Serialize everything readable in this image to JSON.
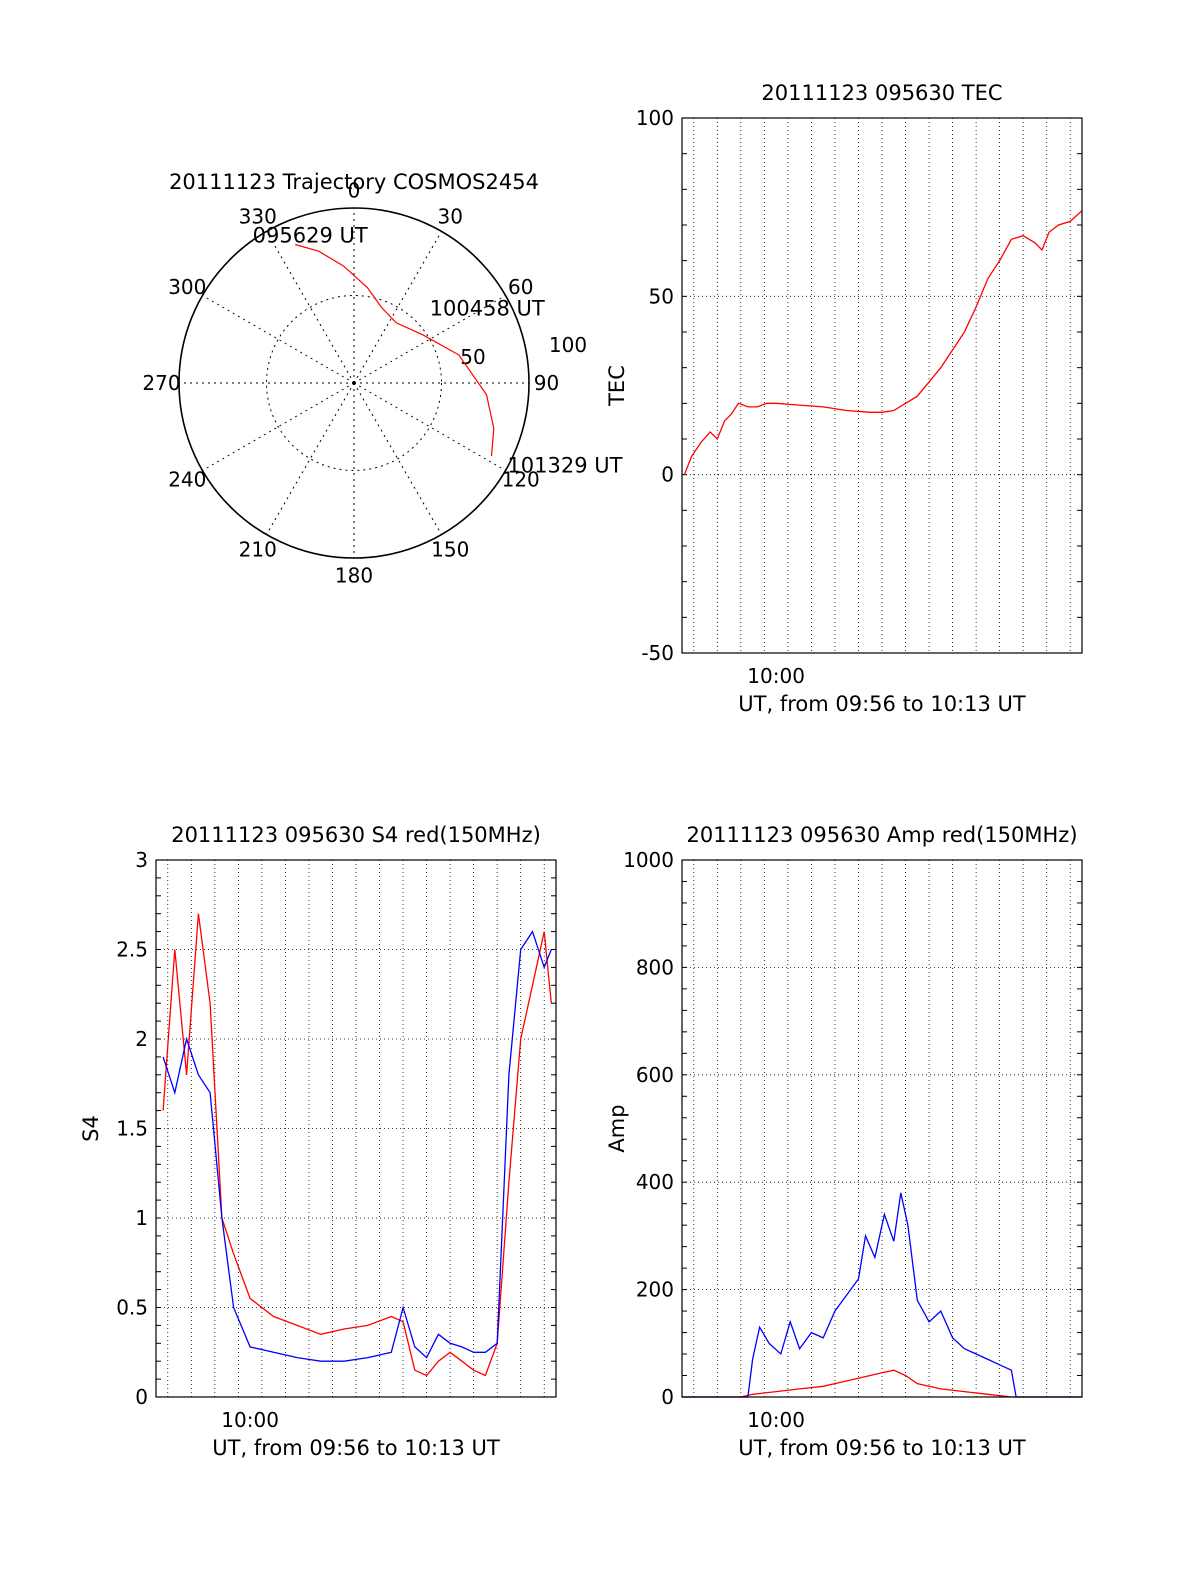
{
  "chart_data": [
    {
      "type": "polar",
      "title": "20111123 Trajectory COSMOS2454",
      "theta_ticks": [
        0,
        30,
        60,
        90,
        120,
        150,
        180,
        210,
        240,
        270,
        300,
        330
      ],
      "theta_labels": [
        "0",
        "30",
        "60",
        "90",
        "120",
        "150",
        "180",
        "210",
        "240",
        "270",
        "300",
        "330"
      ],
      "radius_labels": [
        "50",
        "100"
      ],
      "rmax": 100,
      "grid": true,
      "series": [
        {
          "color": "#ff0000",
          "points": [
            [
              -23,
              86
            ],
            [
              -15,
              78
            ],
            [
              -5,
              67
            ],
            [
              8,
              55
            ],
            [
              20,
              46
            ],
            [
              35,
              42
            ],
            [
              55,
              48
            ],
            [
              75,
              62
            ],
            [
              95,
              76
            ],
            [
              108,
              84
            ],
            [
              118,
              89
            ]
          ]
        }
      ],
      "annotations": [
        {
          "text": "095629 UT",
          "azimuth": -24,
          "radius": 89
        },
        {
          "text": "100458 UT",
          "azimuth": 60,
          "radius": 75
        },
        {
          "text": "101329 UT",
          "azimuth": 118,
          "radius": 98
        }
      ]
    },
    {
      "type": "line",
      "title": "20111123 095630 TEC",
      "xlabel": "UT, from 09:56 to 10:13 UT",
      "ylabel": "TEC",
      "xlim": [
        0,
        17
      ],
      "ylim": [
        -50,
        100
      ],
      "yticks": [
        -50,
        0,
        50,
        100
      ],
      "ytick_labels": [
        "-50",
        "0",
        "50",
        "100"
      ],
      "xticks": [
        4
      ],
      "xtick_labels": [
        "10:00"
      ],
      "grid": true,
      "series": [
        {
          "color": "#ff0000",
          "x": [
            0.1,
            0.4,
            0.8,
            1.2,
            1.5,
            1.8,
            2.1,
            2.4,
            2.8,
            3.2,
            3.6,
            4.0,
            5.0,
            6.0,
            7.0,
            8.0,
            8.5,
            9.0,
            10.0,
            11.0,
            12.0,
            12.5,
            13.0,
            13.5,
            14.0,
            14.5,
            15.0,
            15.3,
            15.6,
            16.0,
            16.5,
            17.0
          ],
          "y": [
            0,
            5,
            9,
            12,
            10,
            15,
            17,
            20,
            19,
            19,
            20,
            20,
            19.5,
            19,
            18,
            17.5,
            17.5,
            18,
            22,
            30,
            40,
            47,
            55,
            60,
            66,
            67,
            65,
            63,
            68,
            70,
            71,
            74
          ]
        }
      ]
    },
    {
      "type": "line",
      "title": "20111123 095630 S4 red(150MHz)",
      "xlabel": "UT, from 09:56 to 10:13 UT",
      "ylabel": "S4",
      "xlim": [
        0,
        17
      ],
      "ylim": [
        0,
        3
      ],
      "yticks": [
        0,
        0.5,
        1,
        1.5,
        2,
        2.5,
        3
      ],
      "ytick_labels": [
        "0",
        "0.5",
        "1",
        "1.5",
        "2",
        "2.5",
        "3"
      ],
      "xticks": [
        4
      ],
      "xtick_labels": [
        "10:00"
      ],
      "grid": true,
      "series": [
        {
          "color": "#ff0000",
          "x": [
            0.3,
            0.8,
            1.3,
            1.8,
            2.3,
            2.8,
            3.3,
            4,
            5,
            6,
            7,
            8,
            9,
            10,
            10.5,
            11,
            11.5,
            12,
            12.5,
            13,
            13.5,
            14,
            14.5,
            15,
            15.5,
            16,
            16.5,
            16.8
          ],
          "y": [
            1.6,
            2.5,
            1.8,
            2.7,
            2.2,
            1.0,
            0.8,
            0.55,
            0.45,
            0.4,
            0.35,
            0.38,
            0.4,
            0.45,
            0.42,
            0.15,
            0.12,
            0.2,
            0.25,
            0.2,
            0.15,
            0.12,
            0.3,
            1.2,
            2.0,
            2.3,
            2.6,
            2.2
          ]
        },
        {
          "color": "#0000ff",
          "x": [
            0.3,
            0.8,
            1.3,
            1.8,
            2.3,
            2.8,
            3.3,
            4,
            5,
            6,
            7,
            8,
            9,
            10,
            10.5,
            11,
            11.5,
            12,
            12.5,
            13,
            13.5,
            14,
            14.5,
            15,
            15.5,
            16,
            16.5,
            16.8
          ],
          "y": [
            1.9,
            1.7,
            2.0,
            1.8,
            1.7,
            1.0,
            0.5,
            0.28,
            0.25,
            0.22,
            0.2,
            0.2,
            0.22,
            0.25,
            0.5,
            0.28,
            0.22,
            0.35,
            0.3,
            0.28,
            0.25,
            0.25,
            0.3,
            1.8,
            2.5,
            2.6,
            2.4,
            2.5
          ]
        }
      ]
    },
    {
      "type": "line",
      "title": "20111123 095630 Amp red(150MHz)",
      "xlabel": "UT, from 09:56 to 10:13 UT",
      "ylabel": "Amp",
      "xlim": [
        0,
        17
      ],
      "ylim": [
        0,
        1000
      ],
      "yticks": [
        0,
        200,
        400,
        600,
        800,
        1000
      ],
      "ytick_labels": [
        "0",
        "200",
        "400",
        "600",
        "800",
        "1000"
      ],
      "xticks": [
        4
      ],
      "xtick_labels": [
        "10:00"
      ],
      "grid": true,
      "series": [
        {
          "color": "#ff0000",
          "x": [
            0,
            2.5,
            3,
            4,
            5,
            6,
            7,
            7.5,
            8,
            8.5,
            9,
            9.5,
            10,
            11,
            12,
            13,
            14,
            17
          ],
          "y": [
            0,
            0,
            5,
            10,
            15,
            20,
            30,
            35,
            40,
            45,
            50,
            40,
            25,
            15,
            10,
            5,
            0,
            0
          ]
        },
        {
          "color": "#0000ff",
          "x": [
            0,
            2.8,
            3.0,
            3.3,
            3.7,
            4.2,
            4.6,
            5.0,
            5.5,
            6.0,
            6.5,
            7.0,
            7.5,
            7.8,
            8.2,
            8.6,
            9.0,
            9.3,
            9.6,
            10.0,
            10.5,
            11.0,
            11.5,
            12.0,
            12.5,
            13.0,
            13.5,
            14.0,
            14.2,
            17
          ],
          "y": [
            0,
            0,
            70,
            130,
            100,
            80,
            140,
            90,
            120,
            110,
            160,
            190,
            220,
            300,
            260,
            340,
            290,
            380,
            320,
            180,
            140,
            160,
            110,
            90,
            80,
            70,
            60,
            50,
            0,
            0
          ]
        }
      ]
    }
  ]
}
